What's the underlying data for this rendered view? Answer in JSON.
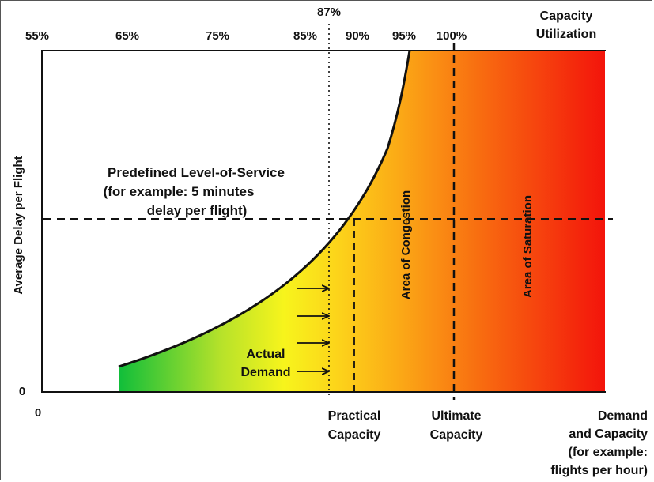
{
  "top_axis": {
    "ticks": [
      "55%",
      "65%",
      "75%",
      "85%",
      "87%",
      "90%",
      "95%",
      "100%"
    ],
    "title_lines": [
      "Capacity",
      "Utilization"
    ]
  },
  "y_axis": {
    "label": "Average Delay per Flight",
    "zero": "0"
  },
  "x_axis": {
    "zero": "0",
    "practical_capacity": [
      "Practical",
      "Capacity"
    ],
    "ultimate_capacity": [
      "Ultimate",
      "Capacity"
    ],
    "demand_capacity": [
      "Demand",
      "and Capacity",
      "(for example:",
      "flights per hour)"
    ]
  },
  "level_of_service": [
    "Predefined Level-of-Service",
    "(for example: 5 minutes",
    "delay per flight)"
  ],
  "areas": {
    "congestion": "Area of Congestion",
    "saturation": "Area of Saturation"
  },
  "actual_demand": [
    "Actual",
    "Demand"
  ],
  "colors": {
    "green": "#13c03a",
    "yellow": "#f5f21a",
    "orange": "#fbb016",
    "red": "#f4140c"
  }
}
